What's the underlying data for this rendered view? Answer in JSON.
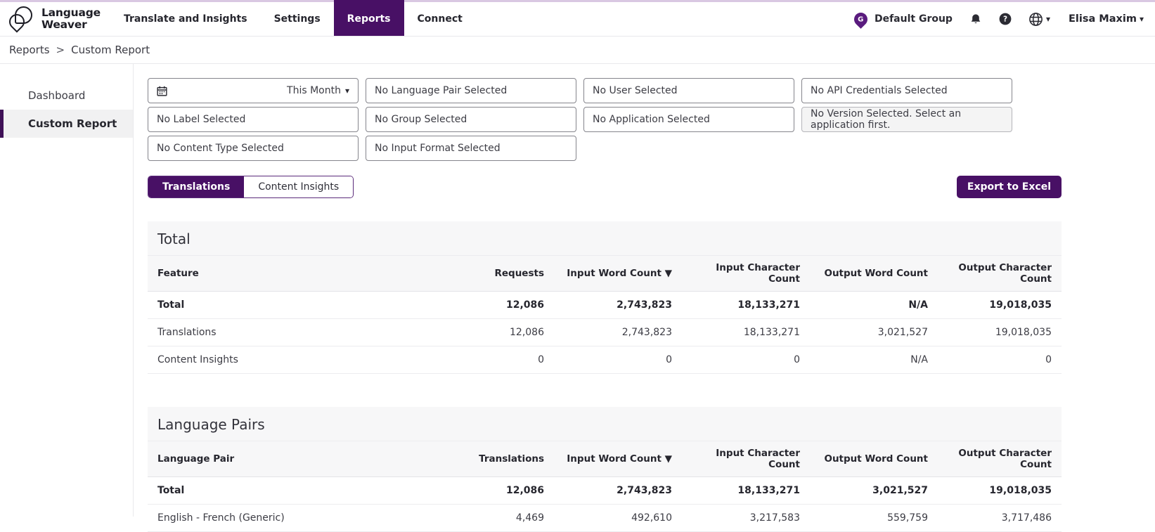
{
  "brand": {
    "line1": "Language",
    "line2": "Weaver"
  },
  "nav": {
    "items": [
      {
        "label": "Translate and Insights",
        "active": false
      },
      {
        "label": "Settings",
        "active": false
      },
      {
        "label": "Reports",
        "active": true
      },
      {
        "label": "Connect",
        "active": false
      }
    ]
  },
  "header_right": {
    "group_initial": "G",
    "group_name": "Default Group",
    "user_name": "Elisa Maxim"
  },
  "breadcrumb": {
    "items": [
      "Reports",
      "Custom Report"
    ],
    "separator": ">"
  },
  "sidebar": {
    "items": [
      {
        "label": "Dashboard",
        "active": false
      },
      {
        "label": "Custom Report",
        "active": true
      }
    ]
  },
  "filters": {
    "date_range": {
      "value": "This Month"
    },
    "language_pair": "No Language Pair Selected",
    "user": "No User Selected",
    "api_credentials": "No API Credentials Selected",
    "label": "No Label Selected",
    "group": "No Group Selected",
    "application": "No Application Selected",
    "version": "No Version Selected. Select an application first.",
    "content_type": "No Content Type Selected",
    "input_format": "No Input Format Selected"
  },
  "tabs": {
    "translations": "Translations",
    "content_insights": "Content Insights"
  },
  "export_button": "Export to Excel",
  "sections": [
    {
      "title": "Total",
      "columns": [
        "Feature",
        "Requests",
        "Input Word Count ▼",
        "Input Character Count",
        "Output Word Count",
        "Output Character Count"
      ],
      "rows": [
        {
          "bold": true,
          "cells": [
            "Total",
            "12,086",
            "2,743,823",
            "18,133,271",
            "N/A",
            "19,018,035"
          ]
        },
        {
          "bold": false,
          "cells": [
            "Translations",
            "12,086",
            "2,743,823",
            "18,133,271",
            "3,021,527",
            "19,018,035"
          ]
        },
        {
          "bold": false,
          "cells": [
            "Content Insights",
            "0",
            "0",
            "0",
            "N/A",
            "0"
          ]
        }
      ]
    },
    {
      "title": "Language Pairs",
      "columns": [
        "Language Pair",
        "Translations",
        "Input Word Count ▼",
        "Input Character Count",
        "Output Word Count",
        "Output Character Count"
      ],
      "rows": [
        {
          "bold": true,
          "cells": [
            "Total",
            "12,086",
            "2,743,823",
            "18,133,271",
            "3,021,527",
            "19,018,035"
          ]
        },
        {
          "bold": false,
          "cells": [
            "English - French (Generic)",
            "4,469",
            "492,610",
            "3,217,583",
            "559,759",
            "3,717,486"
          ]
        }
      ]
    }
  ],
  "colors": {
    "accent_purple": "#481065",
    "pin_purple": "#5a1b7e",
    "top_strip": "#d9c8e2",
    "section_bg": "#f7f7f8",
    "sidebar_active_border": "#3f1157"
  }
}
